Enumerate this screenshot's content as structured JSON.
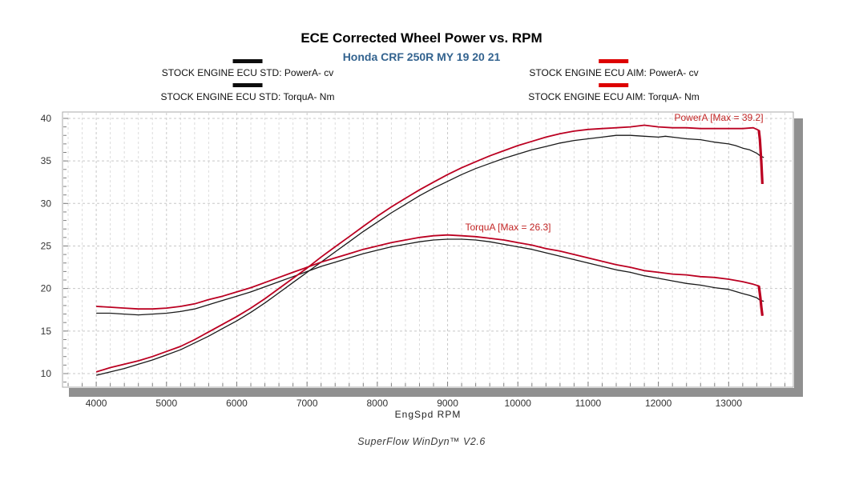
{
  "title": "ECE Corrected Wheel Power vs. RPM",
  "subtitle": "Honda CRF 250R MY 19 20 21",
  "footer": "SuperFlow WinDyn™ V2.6",
  "colors": {
    "subtitle": "#33638f",
    "swatch_std": "#0d0d0d",
    "swatch_aim": "#dd0000",
    "curve_std": "#1a1a1a",
    "curve_aim": "#bb0021",
    "annotation": "#c32626",
    "grid_minor": "#dcdcdc",
    "grid_major": "#c8c8c8",
    "axis_bar": "#909090",
    "tick": "#808080",
    "tick_label": "#333333"
  },
  "chart_data": {
    "type": "line",
    "title": "ECE Corrected Wheel Power vs. RPM",
    "subtitle": "Honda CRF 250R MY 19 20 21",
    "xlabel": "EngSpd RPM",
    "ylabel": "",
    "x_ticks": [
      4000,
      5000,
      6000,
      7000,
      8000,
      9000,
      10000,
      11000,
      12000,
      13000
    ],
    "y_ticks": [
      10,
      15,
      20,
      25,
      30,
      35,
      40
    ],
    "x_range": [
      3520,
      13920
    ],
    "y_range": [
      8.4,
      40.75
    ],
    "grid": "dashed",
    "legend_position": "top",
    "annotations": [
      {
        "text": "PowerA [Max = 39.2]",
        "rpm": 12860,
        "value": 40.05
      },
      {
        "text": "TorquA [Max = 26.3]",
        "rpm": 9860,
        "value": 27.2
      }
    ],
    "series": [
      {
        "name": "STOCK ENGINE ECU STD: PowerA- cv",
        "color_key": "std",
        "unit": "cv",
        "points": [
          [
            4000,
            9.8
          ],
          [
            4200,
            10.2
          ],
          [
            4400,
            10.6
          ],
          [
            4600,
            11.1
          ],
          [
            4800,
            11.6
          ],
          [
            5000,
            12.2
          ],
          [
            5200,
            12.8
          ],
          [
            5400,
            13.6
          ],
          [
            5600,
            14.4
          ],
          [
            5800,
            15.3
          ],
          [
            6000,
            16.2
          ],
          [
            6200,
            17.2
          ],
          [
            6400,
            18.3
          ],
          [
            6600,
            19.5
          ],
          [
            6800,
            20.7
          ],
          [
            7000,
            21.9
          ],
          [
            7200,
            23.1
          ],
          [
            7400,
            24.3
          ],
          [
            7600,
            25.5
          ],
          [
            7800,
            26.7
          ],
          [
            8000,
            27.8
          ],
          [
            8200,
            28.9
          ],
          [
            8400,
            29.9
          ],
          [
            8600,
            30.9
          ],
          [
            8800,
            31.8
          ],
          [
            9000,
            32.6
          ],
          [
            9200,
            33.4
          ],
          [
            9400,
            34.1
          ],
          [
            9600,
            34.7
          ],
          [
            9800,
            35.3
          ],
          [
            10000,
            35.8
          ],
          [
            10200,
            36.3
          ],
          [
            10400,
            36.7
          ],
          [
            10600,
            37.1
          ],
          [
            10800,
            37.4
          ],
          [
            11000,
            37.6
          ],
          [
            11200,
            37.8
          ],
          [
            11400,
            38.0
          ],
          [
            11600,
            38.0
          ],
          [
            11800,
            37.9
          ],
          [
            12000,
            37.8
          ],
          [
            12100,
            37.9
          ],
          [
            12200,
            37.8
          ],
          [
            12400,
            37.6
          ],
          [
            12600,
            37.5
          ],
          [
            12800,
            37.2
          ],
          [
            13000,
            37.0
          ],
          [
            13100,
            36.8
          ],
          [
            13200,
            36.5
          ],
          [
            13300,
            36.3
          ],
          [
            13400,
            35.9
          ],
          [
            13450,
            35.6
          ],
          [
            13500,
            35.4
          ]
        ]
      },
      {
        "name": "STOCK ENGINE ECU STD: TorquA- Nm",
        "color_key": "std",
        "unit": "Nm",
        "points": [
          [
            4000,
            17.1
          ],
          [
            4200,
            17.1
          ],
          [
            4400,
            17.0
          ],
          [
            4600,
            16.9
          ],
          [
            4800,
            17.0
          ],
          [
            5000,
            17.1
          ],
          [
            5200,
            17.3
          ],
          [
            5400,
            17.6
          ],
          [
            5600,
            18.1
          ],
          [
            5800,
            18.6
          ],
          [
            6000,
            19.1
          ],
          [
            6200,
            19.6
          ],
          [
            6400,
            20.2
          ],
          [
            6600,
            20.8
          ],
          [
            6800,
            21.4
          ],
          [
            7000,
            22.0
          ],
          [
            7200,
            22.6
          ],
          [
            7400,
            23.1
          ],
          [
            7600,
            23.6
          ],
          [
            7800,
            24.1
          ],
          [
            8000,
            24.5
          ],
          [
            8200,
            24.9
          ],
          [
            8400,
            25.2
          ],
          [
            8600,
            25.5
          ],
          [
            8800,
            25.7
          ],
          [
            9000,
            25.8
          ],
          [
            9200,
            25.8
          ],
          [
            9400,
            25.7
          ],
          [
            9600,
            25.5
          ],
          [
            9800,
            25.2
          ],
          [
            10000,
            24.9
          ],
          [
            10200,
            24.6
          ],
          [
            10400,
            24.2
          ],
          [
            10600,
            23.8
          ],
          [
            10800,
            23.4
          ],
          [
            11000,
            23.0
          ],
          [
            11200,
            22.6
          ],
          [
            11400,
            22.2
          ],
          [
            11600,
            21.9
          ],
          [
            11800,
            21.5
          ],
          [
            12000,
            21.2
          ],
          [
            12200,
            20.9
          ],
          [
            12400,
            20.6
          ],
          [
            12600,
            20.4
          ],
          [
            12800,
            20.1
          ],
          [
            13000,
            19.9
          ],
          [
            13200,
            19.4
          ],
          [
            13300,
            19.2
          ],
          [
            13400,
            18.9
          ],
          [
            13450,
            18.6
          ],
          [
            13500,
            18.5
          ]
        ]
      },
      {
        "name": "STOCK ENGINE ECU AIM: PowerA- cv",
        "color_key": "aim",
        "unit": "cv",
        "points": [
          [
            4000,
            10.2
          ],
          [
            4200,
            10.7
          ],
          [
            4400,
            11.1
          ],
          [
            4600,
            11.5
          ],
          [
            4800,
            12.0
          ],
          [
            5000,
            12.6
          ],
          [
            5200,
            13.2
          ],
          [
            5400,
            14.0
          ],
          [
            5600,
            14.9
          ],
          [
            5800,
            15.8
          ],
          [
            6000,
            16.7
          ],
          [
            6200,
            17.7
          ],
          [
            6400,
            18.8
          ],
          [
            6600,
            20.0
          ],
          [
            6800,
            21.2
          ],
          [
            7000,
            22.4
          ],
          [
            7200,
            23.7
          ],
          [
            7400,
            24.9
          ],
          [
            7600,
            26.1
          ],
          [
            7800,
            27.3
          ],
          [
            8000,
            28.5
          ],
          [
            8200,
            29.6
          ],
          [
            8400,
            30.6
          ],
          [
            8600,
            31.6
          ],
          [
            8800,
            32.5
          ],
          [
            9000,
            33.4
          ],
          [
            9200,
            34.2
          ],
          [
            9400,
            34.9
          ],
          [
            9600,
            35.6
          ],
          [
            9800,
            36.2
          ],
          [
            10000,
            36.8
          ],
          [
            10200,
            37.3
          ],
          [
            10400,
            37.8
          ],
          [
            10600,
            38.2
          ],
          [
            10800,
            38.5
          ],
          [
            11000,
            38.7
          ],
          [
            11200,
            38.8
          ],
          [
            11400,
            38.9
          ],
          [
            11600,
            39.0
          ],
          [
            11800,
            39.2
          ],
          [
            12000,
            39.0
          ],
          [
            12200,
            38.9
          ],
          [
            12400,
            38.9
          ],
          [
            12600,
            38.8
          ],
          [
            12800,
            38.8
          ],
          [
            13000,
            38.8
          ],
          [
            13200,
            38.8
          ],
          [
            13350,
            38.9
          ],
          [
            13430,
            38.6
          ],
          [
            13445,
            37.5
          ],
          [
            13465,
            34.8
          ],
          [
            13480,
            32.3
          ]
        ]
      },
      {
        "name": "STOCK ENGINE ECU AIM: TorquA- Nm",
        "color_key": "aim",
        "unit": "Nm",
        "points": [
          [
            4000,
            17.9
          ],
          [
            4200,
            17.8
          ],
          [
            4400,
            17.7
          ],
          [
            4600,
            17.6
          ],
          [
            4800,
            17.6
          ],
          [
            5000,
            17.7
          ],
          [
            5200,
            17.9
          ],
          [
            5400,
            18.2
          ],
          [
            5600,
            18.7
          ],
          [
            5800,
            19.1
          ],
          [
            6000,
            19.6
          ],
          [
            6200,
            20.1
          ],
          [
            6400,
            20.7
          ],
          [
            6600,
            21.3
          ],
          [
            6800,
            21.9
          ],
          [
            7000,
            22.5
          ],
          [
            7200,
            23.1
          ],
          [
            7400,
            23.6
          ],
          [
            7600,
            24.1
          ],
          [
            7800,
            24.6
          ],
          [
            8000,
            25.0
          ],
          [
            8200,
            25.4
          ],
          [
            8400,
            25.7
          ],
          [
            8600,
            26.0
          ],
          [
            8800,
            26.2
          ],
          [
            9000,
            26.3
          ],
          [
            9200,
            26.2
          ],
          [
            9400,
            26.1
          ],
          [
            9600,
            25.9
          ],
          [
            9800,
            25.7
          ],
          [
            10000,
            25.4
          ],
          [
            10200,
            25.1
          ],
          [
            10400,
            24.7
          ],
          [
            10600,
            24.4
          ],
          [
            10800,
            24.0
          ],
          [
            11000,
            23.6
          ],
          [
            11200,
            23.2
          ],
          [
            11400,
            22.8
          ],
          [
            11600,
            22.5
          ],
          [
            11800,
            22.1
          ],
          [
            12000,
            21.9
          ],
          [
            12200,
            21.7
          ],
          [
            12400,
            21.6
          ],
          [
            12600,
            21.4
          ],
          [
            12800,
            21.3
          ],
          [
            13000,
            21.1
          ],
          [
            13200,
            20.8
          ],
          [
            13350,
            20.5
          ],
          [
            13430,
            20.3
          ],
          [
            13450,
            19.0
          ],
          [
            13465,
            17.8
          ],
          [
            13480,
            16.8
          ]
        ]
      }
    ]
  }
}
